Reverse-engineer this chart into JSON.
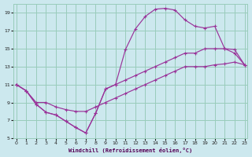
{
  "xlabel": "Windchill (Refroidissement éolien,°C)",
  "bg_color": "#cce8ee",
  "grid_color": "#99ccbb",
  "line_color": "#993399",
  "xlim": [
    -0.3,
    23.3
  ],
  "ylim": [
    5,
    20
  ],
  "xticks": [
    0,
    1,
    2,
    3,
    4,
    5,
    6,
    7,
    8,
    9,
    10,
    11,
    12,
    13,
    14,
    15,
    16,
    17,
    18,
    19,
    20,
    21,
    22,
    23
  ],
  "yticks": [
    5,
    7,
    9,
    11,
    13,
    15,
    17,
    19
  ],
  "line1_x": [
    0,
    1,
    2,
    3,
    4,
    5,
    6,
    7,
    8,
    9,
    10,
    11,
    12,
    13,
    14,
    15,
    16,
    17,
    18,
    19,
    20,
    21,
    22,
    23
  ],
  "line1_y": [
    11.0,
    10.3,
    9.0,
    9.0,
    8.5,
    8.2,
    8.0,
    8.0,
    8.5,
    9.0,
    9.5,
    10.0,
    10.5,
    11.0,
    11.5,
    12.0,
    12.5,
    13.0,
    13.0,
    13.0,
    13.2,
    13.3,
    13.5,
    13.2
  ],
  "line2_x": [
    0,
    1,
    2,
    3,
    4,
    5,
    6,
    7,
    8,
    9,
    10,
    11,
    12,
    13,
    14,
    15,
    16,
    17,
    18,
    19,
    20,
    21,
    22,
    23
  ],
  "line2_y": [
    11.0,
    10.3,
    8.8,
    7.9,
    7.6,
    6.9,
    6.2,
    5.6,
    7.8,
    10.5,
    11.0,
    14.9,
    17.2,
    18.6,
    19.4,
    19.5,
    19.3,
    18.2,
    17.5,
    17.3,
    17.5,
    15.0,
    14.9,
    13.2
  ],
  "line3_x": [
    0,
    1,
    2,
    3,
    4,
    5,
    6,
    7,
    8,
    9,
    10,
    11,
    12,
    13,
    14,
    15,
    16,
    17,
    18,
    19,
    20,
    21,
    22,
    23
  ],
  "line3_y": [
    11.0,
    10.3,
    8.8,
    7.9,
    7.6,
    6.9,
    6.2,
    5.6,
    7.8,
    10.5,
    11.0,
    11.5,
    12.0,
    12.5,
    13.0,
    13.5,
    14.0,
    14.5,
    14.5,
    15.0,
    15.0,
    15.0,
    14.5,
    13.2
  ],
  "marker": "+",
  "marker_size": 3.5,
  "linewidth": 0.85
}
